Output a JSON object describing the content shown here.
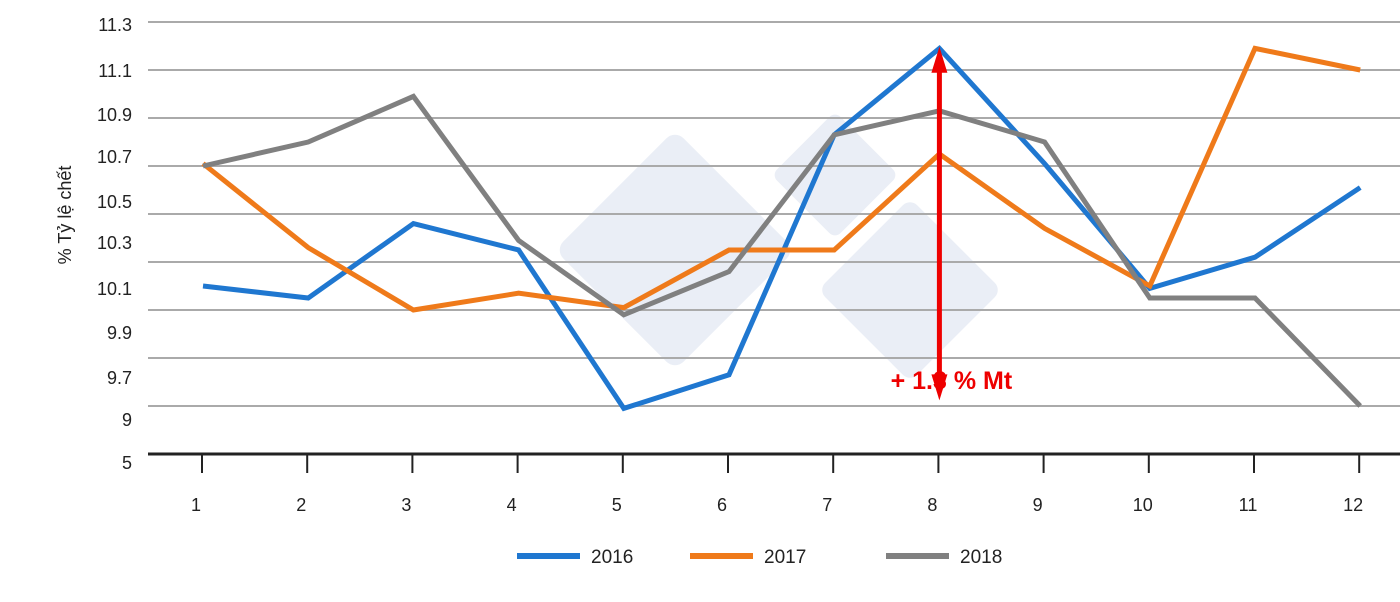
{
  "chart_data": {
    "type": "line",
    "title": "",
    "xlabel": "",
    "ylabel": "% Tỷ lệ chết",
    "categories": [
      "1",
      "2",
      "3",
      "4",
      "5",
      "6",
      "7",
      "8",
      "9",
      "10",
      "11",
      "12"
    ],
    "y_tick_labels": [
      "11.3",
      "11.1",
      "10.9",
      "10.7",
      "10.5",
      "10.3",
      "10.1",
      "9.9",
      "9.7",
      "9",
      "5"
    ],
    "grid": true,
    "legend_position": "bottom",
    "series": [
      {
        "name": "2016",
        "color": "#1f77d0",
        "values": [
          10.2,
          10.15,
          10.46,
          10.35,
          9.69,
          9.83,
          10.83,
          11.19,
          10.71,
          10.19,
          10.32,
          10.61
        ]
      },
      {
        "name": "2017",
        "color": "#ef7a1a",
        "values": [
          10.71,
          10.36,
          10.1,
          10.17,
          10.11,
          10.35,
          10.35,
          10.75,
          10.44,
          10.2,
          11.19,
          11.1
        ]
      },
      {
        "name": "2018",
        "color": "#808080",
        "values": [
          10.7,
          10.8,
          10.99,
          10.39,
          10.08,
          10.26,
          10.83,
          10.93,
          10.8,
          10.15,
          10.15,
          9.7
        ]
      }
    ],
    "annotation": {
      "text": "+ 1.3 % Mt",
      "color": "#ee0000",
      "category": "8",
      "from": 9.74,
      "to": 11.18
    }
  }
}
